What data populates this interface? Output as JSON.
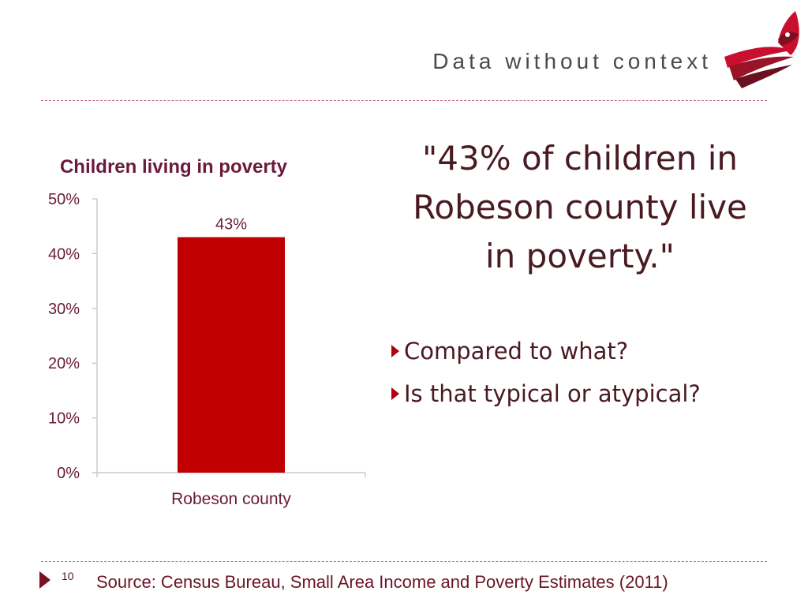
{
  "slide": {
    "title": "Data without context",
    "quote": "\"43% of children in Robeson county live in poverty.\"",
    "bullets": [
      "Compared to what?",
      "Is that typical or atypical?"
    ],
    "page_number": "10",
    "source": "Source: Census Bureau, Small Area Income and Poverty Estimates (2011)"
  },
  "colors": {
    "accent": "#c00000",
    "text": "#4a1a22",
    "rule": "#c06070"
  },
  "chart_data": {
    "type": "bar",
    "title": "Children living in poverty",
    "categories": [
      "Robeson county"
    ],
    "values": [
      43
    ],
    "data_labels": [
      "43%"
    ],
    "ylim": [
      0,
      50
    ],
    "yticks": [
      "0%",
      "10%",
      "20%",
      "30%",
      "40%",
      "50%"
    ],
    "xlabel": "",
    "ylabel": "",
    "bar_color": "#c00000",
    "grid": false,
    "legend": "none"
  }
}
